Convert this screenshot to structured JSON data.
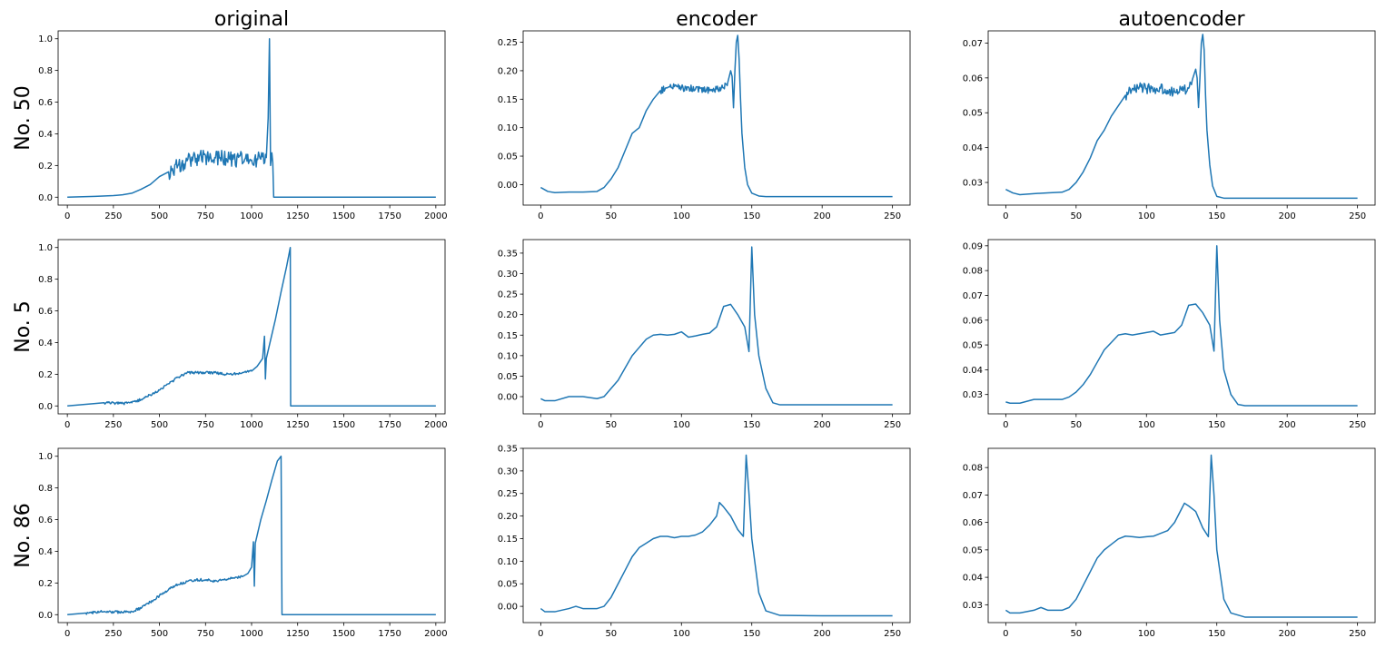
{
  "figure": {
    "column_titles": [
      "original",
      "encoder",
      "autoencoder"
    ],
    "row_labels": [
      "No. 50",
      "No. 5",
      "No. 86"
    ],
    "line_color": "#1f77b4"
  },
  "chart_data": [
    {
      "type": "line",
      "row_label": "No. 50",
      "column_title": "original",
      "xlim": [
        -50,
        2050
      ],
      "ylim": [
        -0.05,
        1.05
      ],
      "xticks": [
        0,
        250,
        500,
        750,
        1000,
        1250,
        1500,
        1750,
        2000
      ],
      "yticks": [
        0.0,
        0.2,
        0.4,
        0.6,
        0.8,
        1.0
      ],
      "ytick_decimals": 1,
      "noise": [
        [
          550,
          1080,
          0.05
        ]
      ],
      "series": [
        {
          "x": [
            0,
            150,
            250,
            300,
            350,
            400,
            450,
            500,
            550,
            600,
            650,
            700,
            800,
            900,
            1000,
            1050,
            1080,
            1090,
            1097,
            1103,
            1110,
            1115,
            1120,
            1125,
            2000
          ],
          "y": [
            0.0,
            0.005,
            0.01,
            0.015,
            0.025,
            0.05,
            0.08,
            0.13,
            0.16,
            0.2,
            0.23,
            0.245,
            0.25,
            0.24,
            0.235,
            0.24,
            0.25,
            0.5,
            1.0,
            0.2,
            0.28,
            0.22,
            0.0,
            0.0,
            0.0
          ]
        }
      ]
    },
    {
      "type": "line",
      "row_label": "No. 50",
      "column_title": "encoder",
      "xlim": [
        -12.5,
        262.5
      ],
      "ylim": [
        -0.036,
        0.27
      ],
      "xticks": [
        0,
        50,
        100,
        150,
        200,
        250
      ],
      "yticks": [
        0.0,
        0.05,
        0.1,
        0.15,
        0.2,
        0.25
      ],
      "ytick_decimals": 2,
      "noise": [
        [
          85,
          133,
          0.006
        ]
      ],
      "series": [
        {
          "x": [
            0,
            5,
            10,
            20,
            30,
            40,
            45,
            50,
            55,
            60,
            65,
            70,
            75,
            80,
            85,
            90,
            95,
            100,
            110,
            120,
            125,
            130,
            133,
            135,
            136,
            137,
            138,
            139,
            140,
            141,
            142,
            143,
            145,
            147,
            150,
            155,
            160,
            200,
            250
          ],
          "y": [
            -0.005,
            -0.012,
            -0.014,
            -0.013,
            -0.013,
            -0.012,
            -0.005,
            0.01,
            0.03,
            0.06,
            0.09,
            0.1,
            0.13,
            0.15,
            0.165,
            0.17,
            0.172,
            0.17,
            0.168,
            0.165,
            0.168,
            0.17,
            0.18,
            0.2,
            0.19,
            0.135,
            0.2,
            0.25,
            0.262,
            0.22,
            0.15,
            0.09,
            0.03,
            0.0,
            -0.015,
            -0.02,
            -0.021,
            -0.021,
            -0.021
          ]
        }
      ]
    },
    {
      "type": "line",
      "row_label": "No. 50",
      "column_title": "autoencoder",
      "xlim": [
        -12.5,
        262.5
      ],
      "ylim": [
        0.0235,
        0.0735
      ],
      "xticks": [
        0,
        50,
        100,
        150,
        200,
        250
      ],
      "yticks": [
        0.03,
        0.04,
        0.05,
        0.06,
        0.07
      ],
      "ytick_decimals": 2,
      "noise": [
        [
          85,
          133,
          0.0015
        ]
      ],
      "series": [
        {
          "x": [
            0,
            5,
            10,
            20,
            30,
            40,
            45,
            50,
            55,
            60,
            65,
            70,
            75,
            80,
            85,
            90,
            95,
            100,
            110,
            120,
            125,
            130,
            133,
            135,
            136,
            137,
            138,
            139,
            140,
            141,
            142,
            143,
            145,
            147,
            150,
            155,
            160,
            200,
            250
          ],
          "y": [
            0.028,
            0.027,
            0.0265,
            0.0268,
            0.027,
            0.0272,
            0.028,
            0.03,
            0.033,
            0.037,
            0.042,
            0.045,
            0.049,
            0.052,
            0.055,
            0.057,
            0.0575,
            0.057,
            0.057,
            0.056,
            0.0565,
            0.057,
            0.06,
            0.0625,
            0.06,
            0.0515,
            0.06,
            0.07,
            0.0725,
            0.068,
            0.055,
            0.045,
            0.035,
            0.029,
            0.026,
            0.0255,
            0.0255,
            0.0255,
            0.0255
          ]
        }
      ]
    },
    {
      "type": "line",
      "row_label": "No. 5",
      "column_title": "original",
      "xlim": [
        -50,
        2050
      ],
      "ylim": [
        -0.05,
        1.05
      ],
      "xticks": [
        0,
        250,
        500,
        750,
        1000,
        1250,
        1500,
        1750,
        2000
      ],
      "yticks": [
        0.0,
        0.2,
        0.4,
        0.6,
        0.8,
        1.0
      ],
      "ytick_decimals": 1,
      "noise": [
        [
          150,
          1000,
          0.008
        ]
      ],
      "series": [
        {
          "x": [
            0,
            100,
            200,
            300,
            350,
            400,
            450,
            500,
            550,
            600,
            650,
            700,
            750,
            800,
            850,
            900,
            950,
            1000,
            1030,
            1060,
            1070,
            1075,
            1080,
            1100,
            1130,
            1160,
            1190,
            1210,
            1212,
            1220,
            2000
          ],
          "y": [
            0.0,
            0.01,
            0.02,
            0.015,
            0.02,
            0.04,
            0.07,
            0.1,
            0.14,
            0.18,
            0.21,
            0.21,
            0.21,
            0.21,
            0.2,
            0.2,
            0.21,
            0.22,
            0.25,
            0.3,
            0.44,
            0.17,
            0.3,
            0.4,
            0.55,
            0.72,
            0.88,
            1.0,
            0.0,
            0.0,
            0.0
          ]
        }
      ]
    },
    {
      "type": "line",
      "row_label": "No. 5",
      "column_title": "encoder",
      "xlim": [
        -12.5,
        262.5
      ],
      "ylim": [
        -0.042,
        0.383
      ],
      "xticks": [
        0,
        50,
        100,
        150,
        200,
        250
      ],
      "yticks": [
        0.0,
        0.05,
        0.1,
        0.15,
        0.2,
        0.25,
        0.3,
        0.35
      ],
      "ytick_decimals": 2,
      "noise": [],
      "series": [
        {
          "x": [
            0,
            3,
            10,
            20,
            30,
            40,
            45,
            50,
            55,
            60,
            65,
            70,
            75,
            80,
            85,
            90,
            95,
            100,
            105,
            110,
            115,
            120,
            125,
            130,
            135,
            140,
            145,
            148,
            150,
            152,
            155,
            160,
            165,
            170,
            200,
            250
          ],
          "y": [
            -0.005,
            -0.01,
            -0.01,
            0.0,
            0.0,
            -0.005,
            0.0,
            0.02,
            0.04,
            0.07,
            0.1,
            0.12,
            0.14,
            0.15,
            0.152,
            0.15,
            0.152,
            0.158,
            0.145,
            0.148,
            0.152,
            0.155,
            0.17,
            0.22,
            0.225,
            0.2,
            0.17,
            0.11,
            0.365,
            0.2,
            0.1,
            0.02,
            -0.015,
            -0.02,
            -0.02,
            -0.02
          ]
        }
      ]
    },
    {
      "type": "line",
      "row_label": "No. 5",
      "column_title": "autoencoder",
      "xlim": [
        -12.5,
        262.5
      ],
      "ylim": [
        0.0222,
        0.0925
      ],
      "xticks": [
        0,
        50,
        100,
        150,
        200,
        250
      ],
      "yticks": [
        0.03,
        0.04,
        0.05,
        0.06,
        0.07,
        0.08,
        0.09
      ],
      "ytick_decimals": 2,
      "noise": [],
      "series": [
        {
          "x": [
            0,
            3,
            10,
            20,
            30,
            40,
            45,
            50,
            55,
            60,
            65,
            70,
            75,
            80,
            85,
            90,
            95,
            100,
            105,
            110,
            115,
            120,
            125,
            130,
            135,
            140,
            145,
            148,
            150,
            152,
            155,
            160,
            165,
            170,
            200,
            250
          ],
          "y": [
            0.027,
            0.0265,
            0.0265,
            0.028,
            0.028,
            0.028,
            0.029,
            0.031,
            0.034,
            0.038,
            0.043,
            0.048,
            0.051,
            0.054,
            0.0545,
            0.054,
            0.0545,
            0.055,
            0.0555,
            0.054,
            0.0545,
            0.055,
            0.058,
            0.066,
            0.0665,
            0.063,
            0.058,
            0.0475,
            0.09,
            0.06,
            0.04,
            0.03,
            0.026,
            0.0255,
            0.0255,
            0.0255
          ]
        }
      ]
    },
    {
      "type": "line",
      "row_label": "No. 86",
      "column_title": "original",
      "xlim": [
        -50,
        2050
      ],
      "ylim": [
        -0.05,
        1.05
      ],
      "xticks": [
        0,
        250,
        500,
        750,
        1000,
        1250,
        1500,
        1750,
        2000
      ],
      "yticks": [
        0.0,
        0.2,
        0.4,
        0.6,
        0.8,
        1.0
      ],
      "ytick_decimals": 1,
      "noise": [
        [
          100,
          970,
          0.008
        ]
      ],
      "series": [
        {
          "x": [
            0,
            100,
            200,
            300,
            350,
            400,
            450,
            500,
            550,
            600,
            650,
            700,
            750,
            800,
            850,
            900,
            950,
            980,
            1000,
            1010,
            1015,
            1020,
            1050,
            1080,
            1110,
            1140,
            1160,
            1165,
            1170,
            2000
          ],
          "y": [
            0.0,
            0.01,
            0.02,
            0.015,
            0.02,
            0.04,
            0.08,
            0.12,
            0.16,
            0.19,
            0.21,
            0.22,
            0.22,
            0.21,
            0.22,
            0.23,
            0.24,
            0.26,
            0.3,
            0.46,
            0.18,
            0.45,
            0.6,
            0.72,
            0.85,
            0.97,
            1.0,
            0.0,
            0.0,
            0.0
          ]
        }
      ]
    },
    {
      "type": "line",
      "row_label": "No. 86",
      "column_title": "encoder",
      "xlim": [
        -12.5,
        262.5
      ],
      "ylim": [
        -0.036,
        0.35
      ],
      "xticks": [
        0,
        50,
        100,
        150,
        200,
        250
      ],
      "yticks": [
        0.0,
        0.05,
        0.1,
        0.15,
        0.2,
        0.25,
        0.3,
        0.35
      ],
      "ytick_decimals": 2,
      "noise": [],
      "series": [
        {
          "x": [
            0,
            3,
            10,
            20,
            25,
            30,
            40,
            45,
            50,
            55,
            60,
            65,
            70,
            75,
            80,
            85,
            90,
            95,
            100,
            105,
            110,
            115,
            120,
            125,
            127,
            130,
            135,
            140,
            144,
            146,
            148,
            150,
            155,
            160,
            170,
            200,
            250
          ],
          "y": [
            -0.005,
            -0.012,
            -0.012,
            -0.005,
            0.0,
            -0.005,
            -0.005,
            0.0,
            0.02,
            0.05,
            0.08,
            0.11,
            0.13,
            0.14,
            0.15,
            0.155,
            0.155,
            0.152,
            0.155,
            0.155,
            0.158,
            0.165,
            0.18,
            0.2,
            0.23,
            0.22,
            0.2,
            0.17,
            0.155,
            0.335,
            0.25,
            0.15,
            0.03,
            -0.01,
            -0.02,
            -0.021,
            -0.021
          ]
        }
      ]
    },
    {
      "type": "line",
      "row_label": "No. 86",
      "column_title": "autoencoder",
      "xlim": [
        -12.5,
        262.5
      ],
      "ylim": [
        0.0235,
        0.087
      ],
      "xticks": [
        0,
        50,
        100,
        150,
        200,
        250
      ],
      "yticks": [
        0.03,
        0.04,
        0.05,
        0.06,
        0.07,
        0.08
      ],
      "ytick_decimals": 2,
      "noise": [],
      "series": [
        {
          "x": [
            0,
            3,
            10,
            20,
            25,
            30,
            40,
            45,
            50,
            55,
            60,
            65,
            70,
            75,
            80,
            85,
            90,
            95,
            100,
            105,
            110,
            115,
            120,
            125,
            127,
            130,
            135,
            140,
            144,
            146,
            148,
            150,
            155,
            160,
            170,
            200,
            250
          ],
          "y": [
            0.028,
            0.027,
            0.027,
            0.028,
            0.029,
            0.028,
            0.028,
            0.029,
            0.032,
            0.037,
            0.042,
            0.047,
            0.05,
            0.052,
            0.054,
            0.055,
            0.0548,
            0.0545,
            0.0548,
            0.055,
            0.056,
            0.057,
            0.06,
            0.065,
            0.067,
            0.066,
            0.064,
            0.058,
            0.0548,
            0.0845,
            0.07,
            0.05,
            0.032,
            0.027,
            0.0255,
            0.0255,
            0.0255
          ]
        }
      ]
    }
  ]
}
